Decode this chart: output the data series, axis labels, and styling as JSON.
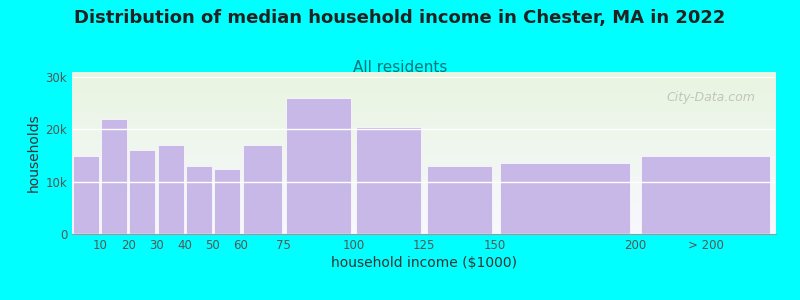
{
  "title": "Distribution of median household income in Chester, MA in 2022",
  "subtitle": "All residents",
  "xlabel": "household income ($1000)",
  "ylabel": "households",
  "background_color": "#00FFFF",
  "plot_bg_top": "#e8f5e0",
  "plot_bg_bottom": "#f8f8ff",
  "bar_color": "#c8b8e8",
  "bar_edge_color": "#c8b8e8",
  "bin_centers": [
    5,
    15,
    25,
    35,
    45,
    55,
    67.5,
    87.5,
    112.5,
    137.5,
    175,
    225
  ],
  "bin_widths": [
    10,
    10,
    10,
    10,
    10,
    10,
    15,
    25,
    25,
    25,
    50,
    50
  ],
  "values": [
    15000,
    22000,
    16000,
    17000,
    13000,
    12500,
    17000,
    26000,
    20500,
    13000,
    13500,
    15000
  ],
  "xtick_positions": [
    10,
    20,
    30,
    40,
    50,
    60,
    75,
    100,
    125,
    150,
    200,
    225
  ],
  "xtick_labels": [
    "10",
    "20",
    "30",
    "40",
    "50",
    "60",
    "75",
    "100",
    "125",
    "150",
    "200",
    "> 200"
  ],
  "yticks": [
    0,
    10000,
    20000,
    30000
  ],
  "ytick_labels": [
    "0",
    "10k",
    "20k",
    "30k"
  ],
  "ylim": [
    0,
    31000
  ],
  "xlim": [
    0,
    250
  ],
  "watermark": "City-Data.com",
  "title_fontsize": 13,
  "subtitle_fontsize": 11,
  "axis_label_fontsize": 10
}
